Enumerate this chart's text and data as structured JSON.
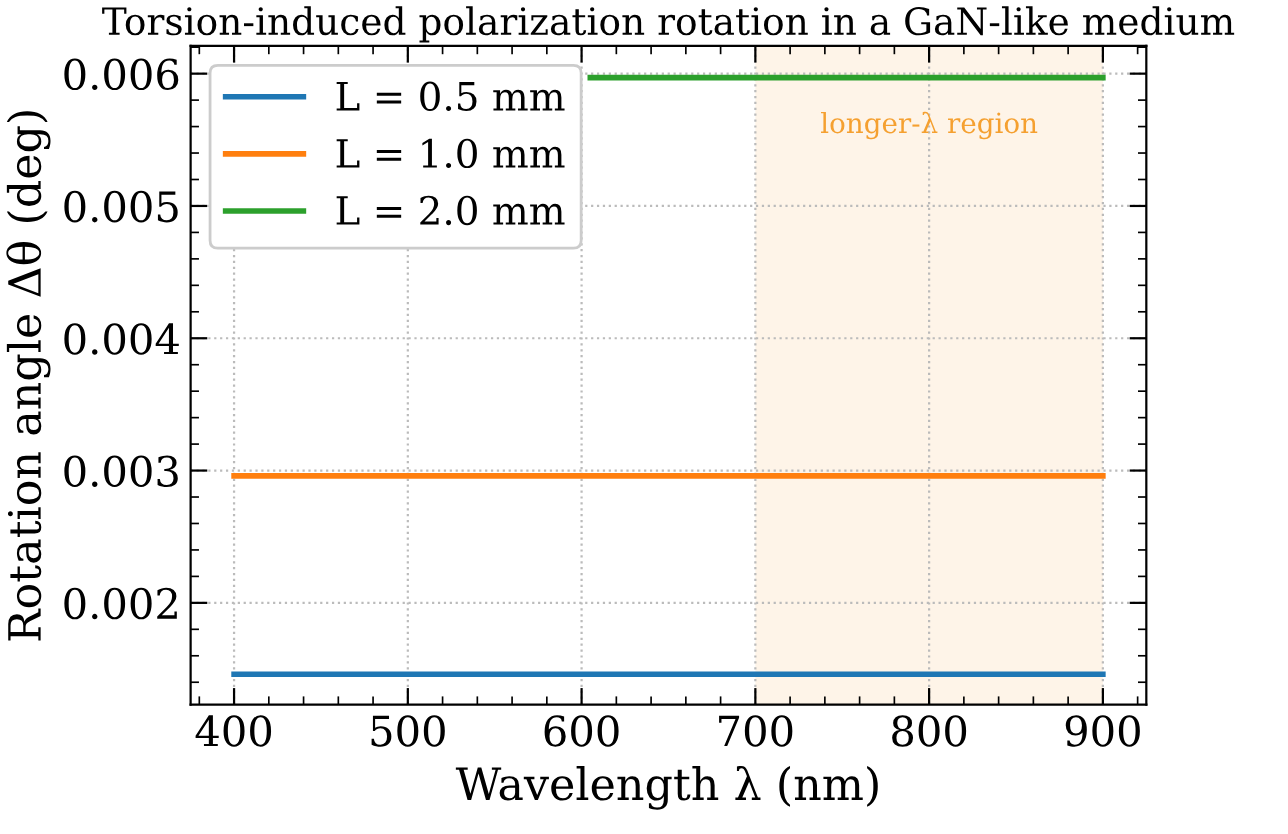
{
  "chart_data": {
    "type": "line",
    "title": "Torsion-induced polarization rotation in a GaN-like medium",
    "xlabel": "Wavelength λ (nm)",
    "ylabel": "Rotation angle Δθ (deg)",
    "x": [
      400,
      900
    ],
    "series": [
      {
        "name": "L = 0.5 mm",
        "color": "#1f77b4",
        "values": [
          0.00146,
          0.00146
        ]
      },
      {
        "name": "L = 1.0 mm",
        "color": "#ff7f0e",
        "values": [
          0.00296,
          0.00296
        ]
      },
      {
        "name": "L = 2.0 mm",
        "color": "#2ca02c",
        "x": [
          605,
          900
        ],
        "values": [
          0.00597,
          0.00597
        ]
      }
    ],
    "xlim": [
      375,
      925
    ],
    "xticks": [
      400,
      500,
      600,
      700,
      800,
      900
    ],
    "ylim": [
      0.00123,
      0.00621
    ],
    "yticks": [
      {
        "value": 0.002,
        "label": "0.002"
      },
      {
        "value": 0.003,
        "label": "0.003"
      },
      {
        "value": 0.004,
        "label": "0.004"
      },
      {
        "value": 0.005,
        "label": "0.005"
      },
      {
        "value": 0.006,
        "label": "0.006"
      }
    ],
    "bands": [
      {
        "axis": "x",
        "from": 700,
        "to": 900,
        "label": "longer-λ region",
        "color": "#fef4e8"
      }
    ],
    "grid": true,
    "legend": "top left",
    "line_style": "solid",
    "marker": "none"
  }
}
